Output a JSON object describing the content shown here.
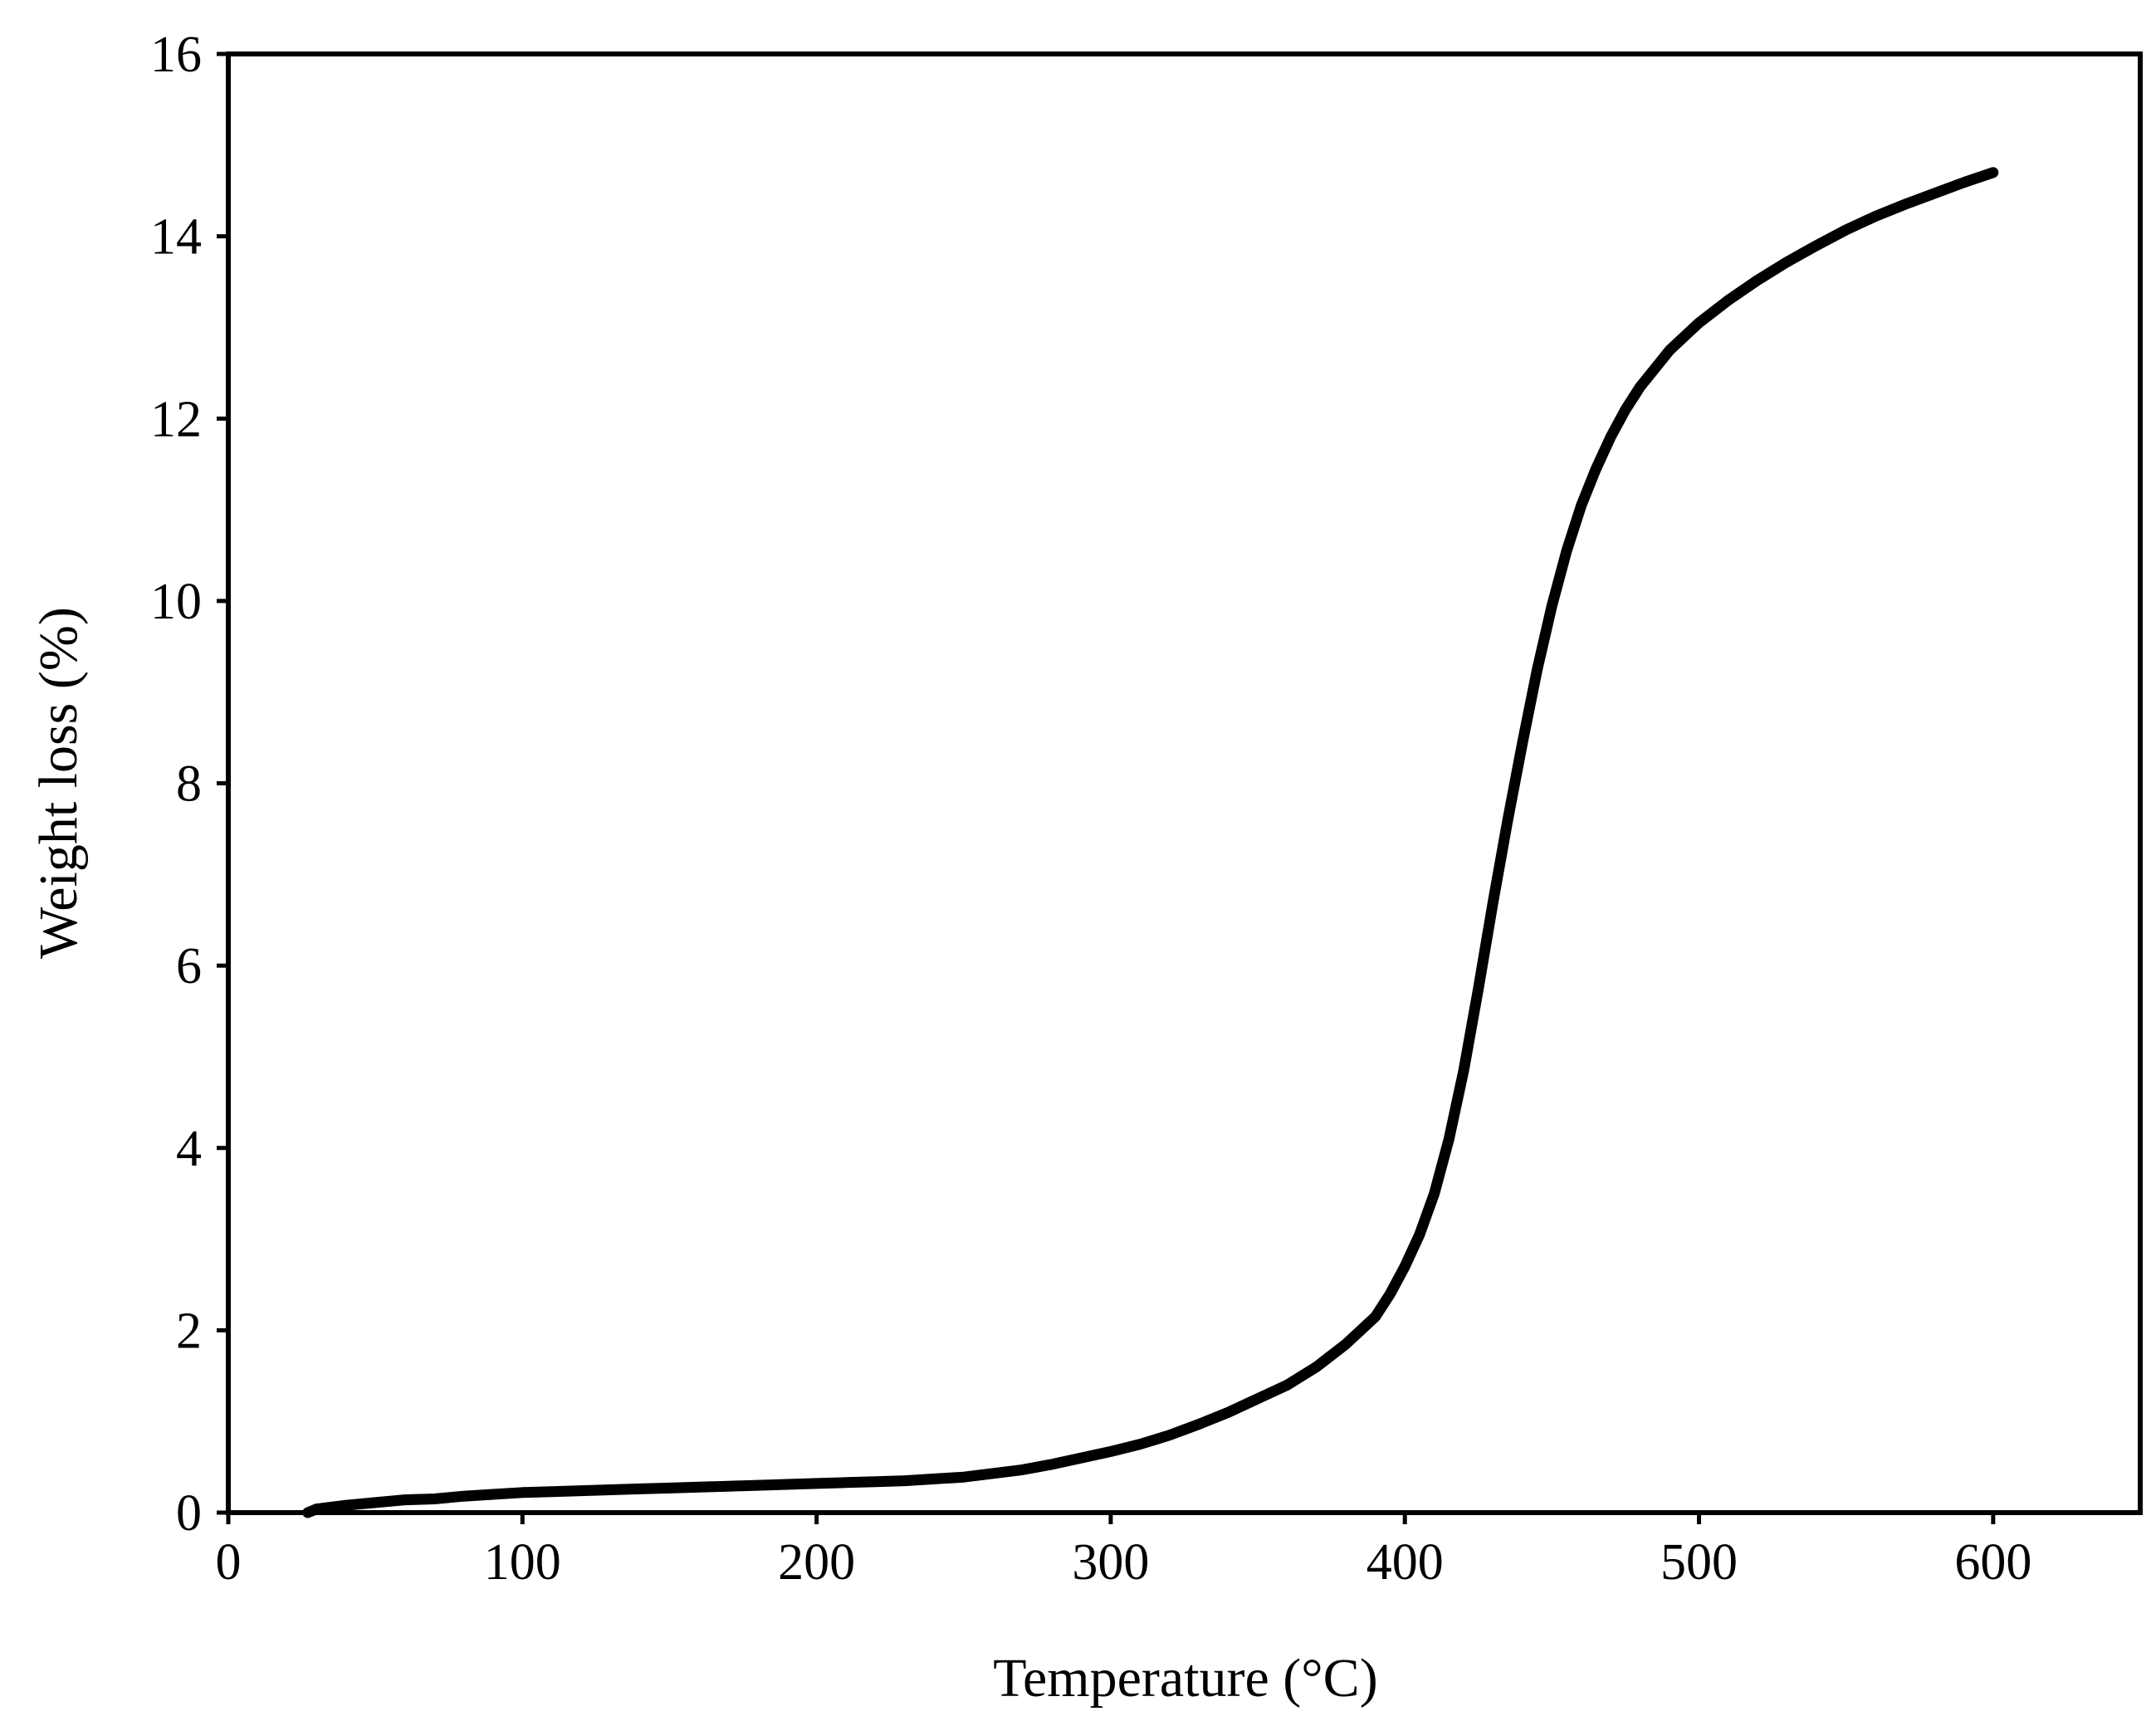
{
  "chart_data": {
    "type": "line",
    "title": "",
    "xlabel": "Temperature (°C)",
    "ylabel": "Weight loss (%)",
    "xlim": [
      0,
      650
    ],
    "ylim": [
      0,
      16
    ],
    "xticks": [
      0,
      100,
      200,
      300,
      400,
      500,
      600
    ],
    "yticks": [
      0,
      2,
      4,
      6,
      8,
      10,
      12,
      14,
      16
    ],
    "xtick_labels": [
      "0",
      "100",
      "200",
      "300",
      "400",
      "500",
      "600"
    ],
    "ytick_labels": [
      "0",
      "2",
      "4",
      "6",
      "8",
      "10",
      "12",
      "14",
      "16"
    ],
    "grid": false,
    "legend": "none",
    "line_color": "#000000",
    "series": [
      {
        "x": [
          27,
          30,
          40,
          50,
          60,
          70,
          80,
          90,
          100,
          110,
          120,
          130,
          140,
          150,
          160,
          170,
          180,
          190,
          200,
          210,
          220,
          230,
          240,
          250,
          260,
          270,
          280,
          290,
          300,
          310,
          320,
          330,
          340,
          350,
          360,
          370,
          380,
          390,
          395,
          400,
          405,
          410,
          415,
          420,
          425,
          430,
          435,
          440,
          445,
          450,
          455,
          460,
          465,
          470,
          475,
          480,
          485,
          490,
          495,
          500,
          510,
          520,
          530,
          540,
          550,
          560,
          570,
          580,
          590,
          600
        ],
        "y": [
          0.0,
          0.04,
          0.08,
          0.11,
          0.14,
          0.15,
          0.18,
          0.2,
          0.22,
          0.23,
          0.24,
          0.25,
          0.26,
          0.27,
          0.28,
          0.29,
          0.3,
          0.31,
          0.32,
          0.33,
          0.34,
          0.35,
          0.37,
          0.39,
          0.43,
          0.47,
          0.53,
          0.6,
          0.67,
          0.75,
          0.85,
          0.97,
          1.1,
          1.25,
          1.4,
          1.6,
          1.85,
          2.15,
          2.4,
          2.7,
          3.05,
          3.5,
          4.1,
          4.85,
          5.75,
          6.7,
          7.6,
          8.45,
          9.25,
          9.95,
          10.55,
          11.05,
          11.45,
          11.8,
          12.1,
          12.35,
          12.55,
          12.75,
          12.9,
          13.05,
          13.3,
          13.52,
          13.72,
          13.9,
          14.07,
          14.22,
          14.35,
          14.47,
          14.59,
          14.7
        ]
      }
    ]
  }
}
